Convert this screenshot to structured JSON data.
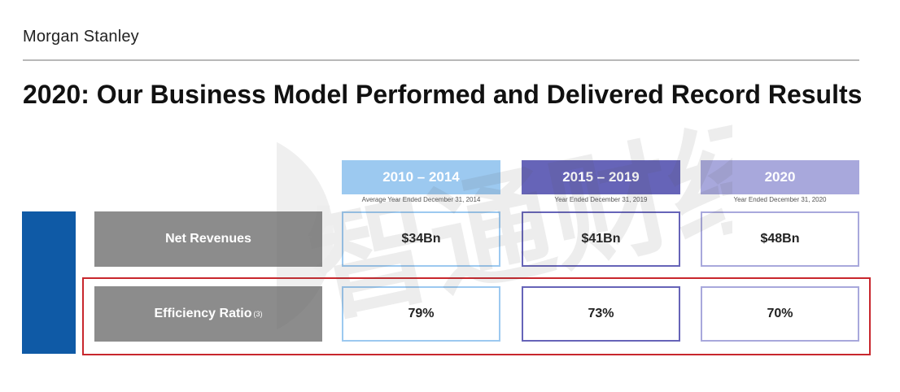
{
  "header": {
    "logo": "Morgan Stanley"
  },
  "title": "2020: Our Business Model Performed and Delivered Record Results",
  "table": {
    "columns": [
      {
        "label": "2010 – 2014",
        "sub": "Average Year Ended December 31, 2014",
        "color": "#9cc9f0",
        "border": "#9cc9f0"
      },
      {
        "label": "2015 – 2019",
        "sub": "Year Ended December 31, 2019",
        "color": "#6664b8",
        "border": "#6664b8"
      },
      {
        "label": "2020",
        "sub": "Year Ended December 31, 2020",
        "color": "#a8a8dc",
        "border": "#a8a8dc"
      }
    ],
    "rows": [
      {
        "label": "Net Revenues",
        "note": "",
        "values": [
          "$34Bn",
          "$41Bn",
          "$48Bn"
        ]
      },
      {
        "label": "Efficiency Ratio",
        "note": "(3)",
        "values": [
          "79%",
          "73%",
          "70%"
        ]
      }
    ]
  },
  "colors": {
    "sidebar": "#0f5aa6",
    "row_label_bg": "#8c8c8c",
    "highlight": "#c8272d"
  },
  "watermark": {
    "text": "智通财经"
  }
}
